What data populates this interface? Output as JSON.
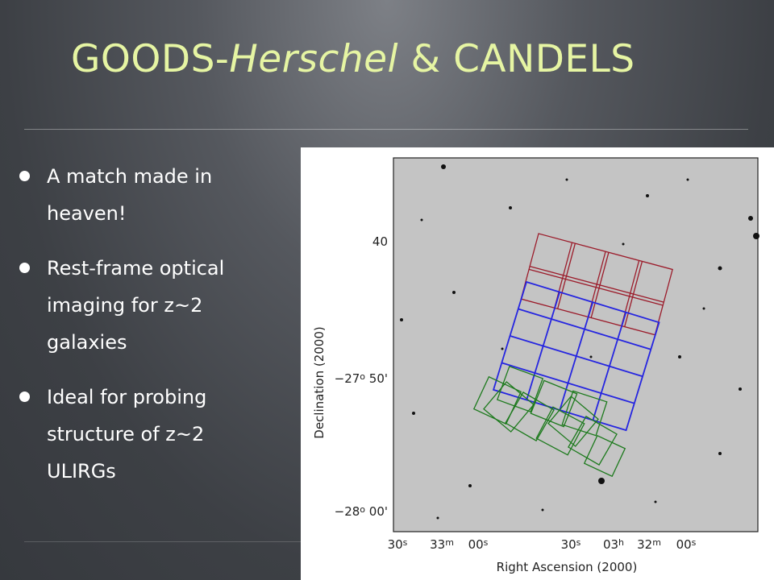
{
  "title": {
    "part1": "GOODS-",
    "part2": "Herschel",
    "part3": " & CANDELS"
  },
  "bullets": [
    [
      "A match made in",
      "heaven!"
    ],
    [
      "Rest-frame optical",
      "imaging for z~2",
      "galaxies"
    ],
    [
      "Ideal for probing",
      "structure of z~2",
      "ULIRGs"
    ]
  ],
  "figure": {
    "y_label": "Declination (2000)",
    "x_label": "Right Ascension (2000)",
    "y_ticks": [
      [
        "40"
      ],
      [
        "−27",
        "o",
        " 50'"
      ],
      [
        "−28",
        "o",
        " 00'"
      ]
    ],
    "x_ticks": [
      [
        "30",
        "s"
      ],
      [
        "33",
        "m"
      ],
      [
        "00",
        "s"
      ],
      [
        "30",
        "s"
      ],
      [
        "03",
        "h"
      ],
      [
        "32",
        "m"
      ],
      [
        "00",
        "s"
      ]
    ]
  }
}
